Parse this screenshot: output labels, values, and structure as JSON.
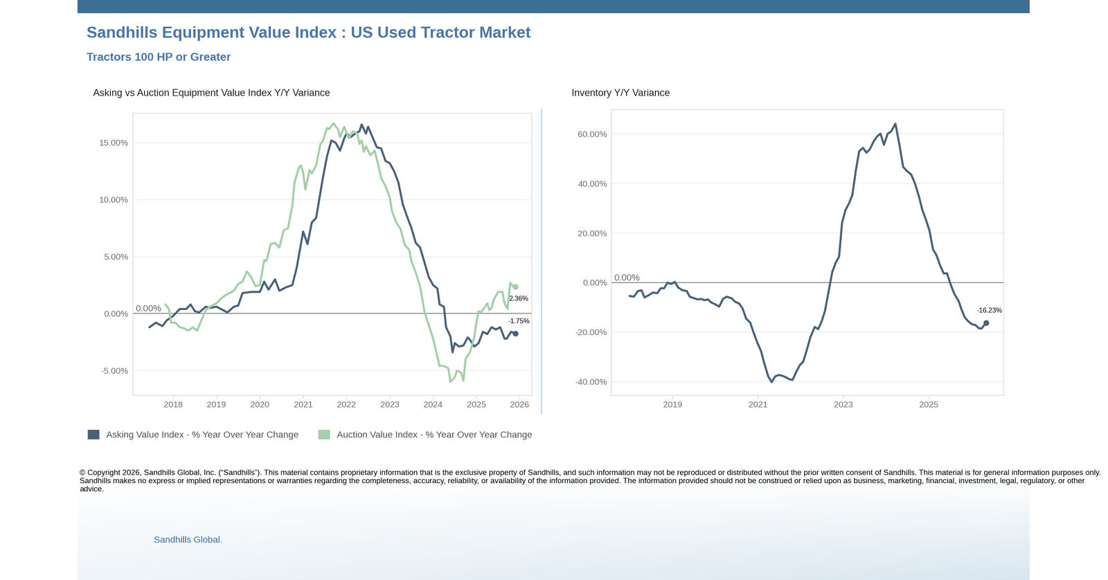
{
  "title": "Sandhills Equipment Value Index : US Used Tractor Market",
  "subtitle": "Tractors 100 HP or Greater",
  "footer": "© Copyright 2026, Sandhills Global, Inc. (“Sandhills”). This material contains proprietary information that is the exclusive property of Sandhills, and such information may not be reproduced or distributed without the prior written consent of Sandhills. This material is for general information purposes only. Sandhills makes no express or implied representations or warranties regarding the completeness, accuracy, reliability, or availability of the information provided. The information provided should not be construed or relied upon as business, marketing, financial, investment, legal, regulatory, or other advice.",
  "logo_text": "Sandhills Global.",
  "chart_data": [
    {
      "type": "line",
      "title": "Asking vs Auction Equipment Value Index Y/Y Variance",
      "xlim": [
        2017.07,
        2026.28
      ],
      "xticks": [
        2018,
        2019,
        2020,
        2021,
        2022,
        2023,
        2024,
        2025,
        2026
      ],
      "ylim": [
        -7.2,
        17.6
      ],
      "yticks": [
        {
          "value": -5,
          "label": "-5.00%"
        },
        {
          "value": 0,
          "label": "0.00%"
        },
        {
          "value": 5,
          "label": "5.00%"
        },
        {
          "value": 10,
          "label": "10.00%"
        },
        {
          "value": 15,
          "label": "15.00%"
        }
      ],
      "grid": true,
      "legend": "lower left",
      "reference_lines": [
        {
          "value": 0,
          "label": "0.00%"
        }
      ],
      "annotations": [
        {
          "text": "2.36%",
          "x": 2025.9,
          "y": 2.36
        },
        {
          "text": "-1.75%",
          "x": 2025.9,
          "y": -1.75
        }
      ],
      "series": [
        {
          "name": "Asking Value Index - % Year Over Year Change",
          "color": "#4a6178",
          "x": [
            2017.45,
            2017.6,
            2017.75,
            2017.85,
            2018.0,
            2018.15,
            2018.3,
            2018.4,
            2018.5,
            2018.6,
            2018.75,
            2018.85,
            2019.0,
            2019.15,
            2019.25,
            2019.4,
            2019.5,
            2019.6,
            2019.8,
            2020.0,
            2020.1,
            2020.2,
            2020.35,
            2020.45,
            2020.6,
            2020.75,
            2020.85,
            2021.0,
            2021.1,
            2021.2,
            2021.3,
            2021.45,
            2021.55,
            2021.65,
            2021.75,
            2021.85,
            2021.95,
            2022.0,
            2022.1,
            2022.2,
            2022.3,
            2022.35,
            2022.45,
            2022.5,
            2022.6,
            2022.7,
            2022.8,
            2022.9,
            2023.0,
            2023.1,
            2023.2,
            2023.3,
            2023.4,
            2023.5,
            2023.6,
            2023.7,
            2023.8,
            2023.9,
            2024.0,
            2024.1,
            2024.15,
            2024.25,
            2024.3,
            2024.4,
            2024.45,
            2024.5,
            2024.6,
            2024.7,
            2024.8,
            2024.85,
            2024.95,
            2025.05,
            2025.15,
            2025.25,
            2025.35,
            2025.45,
            2025.55,
            2025.65,
            2025.7,
            2025.8,
            2025.9
          ],
          "values": [
            -1.2,
            -0.8,
            -1.1,
            -0.6,
            -0.2,
            0.4,
            0.4,
            0.8,
            0.2,
            0.1,
            0.6,
            0.5,
            0.6,
            0.3,
            0.1,
            0.6,
            0.7,
            1.8,
            1.9,
            1.9,
            2.8,
            2.1,
            3.0,
            2.0,
            2.3,
            2.5,
            4.0,
            7.2,
            6.1,
            8.0,
            8.4,
            11.8,
            13.8,
            15.2,
            15.0,
            14.3,
            15.4,
            15.8,
            15.5,
            15.8,
            16.0,
            16.6,
            15.8,
            16.4,
            15.5,
            14.6,
            14.5,
            13.4,
            13.2,
            12.5,
            11.5,
            9.6,
            8.5,
            7.5,
            6.2,
            5.8,
            4.5,
            3.2,
            2.5,
            2.2,
            0.8,
            0.6,
            -1.2,
            -2.0,
            -3.4,
            -2.6,
            -2.9,
            -2.8,
            -2.1,
            -2.3,
            -2.9,
            -2.6,
            -1.6,
            -1.8,
            -1.2,
            -1.4,
            -1.2,
            -2.2,
            -2.2,
            -1.6,
            -1.75
          ]
        },
        {
          "name": "Auction Value Index - % Year Over Year Change",
          "color": "#a3cfa8",
          "x": [
            2017.82,
            2017.9,
            2017.95,
            2018.05,
            2018.15,
            2018.25,
            2018.35,
            2018.45,
            2018.55,
            2018.65,
            2018.75,
            2018.85,
            2019.0,
            2019.1,
            2019.2,
            2019.3,
            2019.4,
            2019.5,
            2019.6,
            2019.7,
            2019.8,
            2019.9,
            2020.0,
            2020.1,
            2020.15,
            2020.25,
            2020.35,
            2020.45,
            2020.55,
            2020.65,
            2020.75,
            2020.8,
            2020.9,
            2020.95,
            2021.0,
            2021.05,
            2021.15,
            2021.2,
            2021.3,
            2021.4,
            2021.45,
            2021.55,
            2021.6,
            2021.7,
            2021.8,
            2021.85,
            2021.95,
            2022.05,
            2022.15,
            2022.25,
            2022.3,
            2022.35,
            2022.4,
            2022.45,
            2022.55,
            2022.65,
            2022.75,
            2022.8,
            2022.9,
            2023.0,
            2023.05,
            2023.15,
            2023.25,
            2023.35,
            2023.45,
            2023.5,
            2023.6,
            2023.7,
            2023.8,
            2023.9,
            2024.0,
            2024.1,
            2024.15,
            2024.25,
            2024.35,
            2024.4,
            2024.5,
            2024.55,
            2024.65,
            2024.7,
            2024.75,
            2024.85,
            2024.95,
            2025.0,
            2025.05,
            2025.1,
            2025.2,
            2025.25,
            2025.3,
            2025.35,
            2025.4,
            2025.5,
            2025.6,
            2025.65,
            2025.72,
            2025.78,
            2025.85,
            2025.9
          ],
          "values": [
            0.8,
            0.4,
            -0.8,
            -0.8,
            -1.2,
            -1.3,
            -1.5,
            -1.2,
            -1.5,
            -0.6,
            0.3,
            0.6,
            0.9,
            1.3,
            1.6,
            1.8,
            2.0,
            2.6,
            2.8,
            3.7,
            3.2,
            2.4,
            2.5,
            4.7,
            4.6,
            6.1,
            6.2,
            5.8,
            7.3,
            7.5,
            9.5,
            11.5,
            12.8,
            13.0,
            12.4,
            10.9,
            12.6,
            12.3,
            13.0,
            14.9,
            15.1,
            16.3,
            16.2,
            16.7,
            16.2,
            15.5,
            16.4,
            15.4,
            16.0,
            15.8,
            14.9,
            15.2,
            14.2,
            14.7,
            13.9,
            14.3,
            12.8,
            11.9,
            11.2,
            10.2,
            9.0,
            8.0,
            7.4,
            6.0,
            5.6,
            4.6,
            3.6,
            2.4,
            0.2,
            -1.0,
            -2.2,
            -3.8,
            -4.6,
            -4.6,
            -4.8,
            -6.0,
            -5.6,
            -5.0,
            -5.2,
            -5.9,
            -4.0,
            -3.4,
            -2.1,
            -0.8,
            0.2,
            0.1,
            0.6,
            0.9,
            0.3,
            0.5,
            1.2,
            1.9,
            1.9,
            0.9,
            0.4,
            2.7,
            2.4,
            2.36
          ]
        }
      ]
    },
    {
      "type": "line",
      "title": "Inventory Y/Y Variance",
      "xlim": [
        2017.57,
        2026.76
      ],
      "xticks": [
        2019,
        2021,
        2023,
        2025
      ],
      "ylim": [
        -45.6,
        69.8
      ],
      "yticks": [
        {
          "value": -40,
          "label": "-40.00%"
        },
        {
          "value": -20,
          "label": "-20.00%"
        },
        {
          "value": 0,
          "label": "0.00%"
        },
        {
          "value": 20,
          "label": "20.00%"
        },
        {
          "value": 40,
          "label": "40.00%"
        },
        {
          "value": 60,
          "label": "60.00%"
        }
      ],
      "grid": true,
      "reference_lines": [
        {
          "value": 0,
          "label": "0.00%"
        }
      ],
      "annotations": [
        {
          "text": "-16.23%",
          "x": 2026.34,
          "y": -16.23
        }
      ],
      "series": [
        {
          "color": "#4a6178",
          "x": [
            2017.99,
            2018.09,
            2018.19,
            2018.27,
            2018.34,
            2018.44,
            2018.54,
            2018.64,
            2018.72,
            2018.8,
            2018.88,
            2018.97,
            2019.05,
            2019.13,
            2019.23,
            2019.33,
            2019.4,
            2019.5,
            2019.58,
            2019.66,
            2019.75,
            2019.83,
            2019.9,
            2020.0,
            2020.09,
            2020.18,
            2020.26,
            2020.38,
            2020.46,
            2020.56,
            2020.64,
            2020.72,
            2020.82,
            2020.89,
            2020.99,
            2021.07,
            2021.15,
            2021.24,
            2021.32,
            2021.4,
            2021.48,
            2021.57,
            2021.65,
            2021.73,
            2021.81,
            2021.9,
            2021.98,
            2022.06,
            2022.15,
            2022.23,
            2022.33,
            2022.41,
            2022.49,
            2022.57,
            2022.65,
            2022.74,
            2022.82,
            2022.9,
            2022.97,
            2023.05,
            2023.13,
            2023.21,
            2023.29,
            2023.37,
            2023.46,
            2023.54,
            2023.62,
            2023.71,
            2023.79,
            2023.87,
            2023.95,
            2024.04,
            2024.12,
            2024.22,
            2024.32,
            2024.4,
            2024.49,
            2024.59,
            2024.68,
            2024.78,
            2024.85,
            2024.93,
            2025.02,
            2025.1,
            2025.18,
            2025.27,
            2025.35,
            2025.43,
            2025.51,
            2025.6,
            2025.7,
            2025.76,
            2025.85,
            2025.93,
            2026.01,
            2026.09,
            2026.18,
            2026.24,
            2026.29,
            2026.34
          ],
          "values": [
            -5.4,
            -5.7,
            -3.4,
            -3.1,
            -6.0,
            -5.1,
            -4.0,
            -4.3,
            -2.3,
            -2.3,
            0.0,
            -0.6,
            0.3,
            -2.0,
            -3.1,
            -3.4,
            -5.7,
            -6.3,
            -6.8,
            -6.6,
            -7.1,
            -6.8,
            -8.0,
            -8.8,
            -9.7,
            -6.6,
            -5.7,
            -6.3,
            -7.7,
            -8.5,
            -10.5,
            -14.5,
            -16.2,
            -19.9,
            -24.5,
            -27.6,
            -32.8,
            -37.9,
            -40.2,
            -37.9,
            -37.3,
            -37.6,
            -38.2,
            -39.0,
            -39.3,
            -35.9,
            -33.3,
            -31.9,
            -26.8,
            -21.9,
            -17.9,
            -18.8,
            -15.7,
            -11.4,
            -4.0,
            4.3,
            8.0,
            10.5,
            24.2,
            29.3,
            31.9,
            35.3,
            45.0,
            53.0,
            54.4,
            52.4,
            53.8,
            57.0,
            59.0,
            60.1,
            55.6,
            60.1,
            61.0,
            64.1,
            55.0,
            46.7,
            45.0,
            43.6,
            39.9,
            34.2,
            29.3,
            25.6,
            20.8,
            13.4,
            11.1,
            6.8,
            3.7,
            3.7,
            -0.6,
            -4.6,
            -7.4,
            -10.5,
            -14.2,
            -15.7,
            -16.8,
            -17.1,
            -18.5,
            -18.5,
            -17.4,
            -16.23
          ]
        }
      ]
    }
  ]
}
